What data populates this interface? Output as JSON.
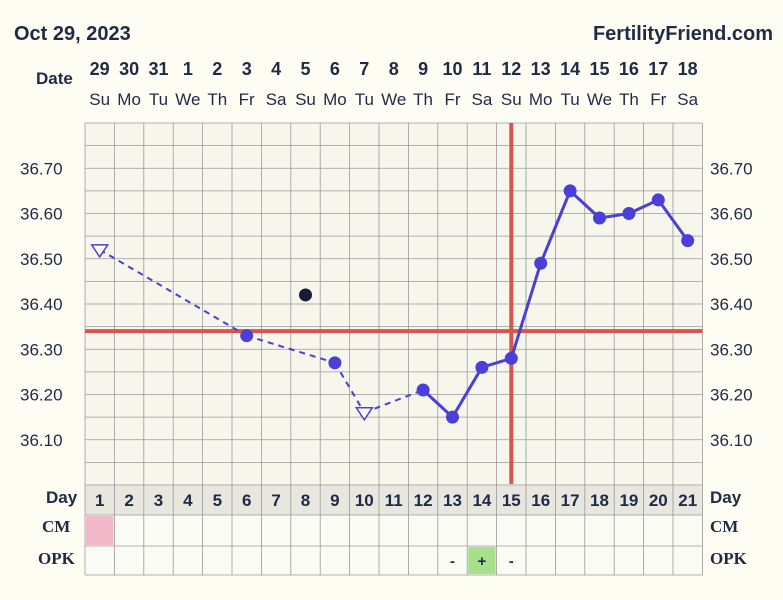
{
  "header": {
    "date": "Oct 29, 2023",
    "site": "FertilityFriend.com"
  },
  "row_labels": {
    "date": "Date",
    "day": "Day",
    "cm": "CM",
    "opk": "OPK"
  },
  "colors": {
    "line": "#4a3fd6",
    "coverline": "#d9534f",
    "grid": "#999999",
    "cm_fill": "#f0b8c8",
    "opk_positive_fill": "#a7e08a",
    "background": "#fefdf4",
    "text": "#1f2a44"
  },
  "chart_data": {
    "type": "line",
    "title": "",
    "xlabel": "Day",
    "ylabel": "",
    "y_ticks": [
      "36.70",
      "36.60",
      "36.50",
      "36.40",
      "36.30",
      "36.20",
      "36.10"
    ],
    "ylim": [
      36.0,
      36.8
    ],
    "cycle_days": [
      1,
      2,
      3,
      4,
      5,
      6,
      7,
      8,
      9,
      10,
      11,
      12,
      13,
      14,
      15,
      16,
      17,
      18,
      19,
      20,
      21
    ],
    "dates": [
      "29",
      "30",
      "31",
      "1",
      "2",
      "3",
      "4",
      "5",
      "6",
      "7",
      "8",
      "9",
      "10",
      "11",
      "12",
      "13",
      "14",
      "15",
      "16",
      "17",
      "18"
    ],
    "weekdays": [
      "Su",
      "Mo",
      "Tu",
      "We",
      "Th",
      "Fr",
      "Sa",
      "Su",
      "Mo",
      "Tu",
      "We",
      "Th",
      "Fr",
      "Sa",
      "Su",
      "Mo",
      "Tu",
      "We",
      "Th",
      "Fr",
      "Sa"
    ],
    "temperatures": [
      {
        "day": 1,
        "temp": 36.52,
        "marker": "open-triangle"
      },
      {
        "day": 6,
        "temp": 36.33,
        "marker": "dot"
      },
      {
        "day": 9,
        "temp": 36.27,
        "marker": "dot"
      },
      {
        "day": 10,
        "temp": 36.16,
        "marker": "open-triangle"
      },
      {
        "day": 12,
        "temp": 36.21,
        "marker": "dot"
      },
      {
        "day": 13,
        "temp": 36.15,
        "marker": "dot"
      },
      {
        "day": 14,
        "temp": 36.26,
        "marker": "dot"
      },
      {
        "day": 15,
        "temp": 36.28,
        "marker": "dot"
      },
      {
        "day": 16,
        "temp": 36.49,
        "marker": "dot"
      },
      {
        "day": 17,
        "temp": 36.65,
        "marker": "dot"
      },
      {
        "day": 18,
        "temp": 36.59,
        "marker": "dot"
      },
      {
        "day": 19,
        "temp": 36.6,
        "marker": "dot"
      },
      {
        "day": 20,
        "temp": 36.63,
        "marker": "dot"
      },
      {
        "day": 21,
        "temp": 36.54,
        "marker": "dot"
      }
    ],
    "discarded": [
      {
        "day": 8,
        "temp": 36.42
      }
    ],
    "coverline": 36.34,
    "ovulation_day": 15,
    "cm": [
      {
        "day": 1,
        "code": ""
      }
    ],
    "opk": [
      {
        "day": 13,
        "value": "-"
      },
      {
        "day": 14,
        "value": "+"
      },
      {
        "day": 15,
        "value": "-"
      }
    ]
  }
}
